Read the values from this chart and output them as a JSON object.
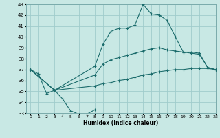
{
  "bg_color": "#c8e8e4",
  "grid_color": "#a0cccc",
  "line_color": "#1a6b6b",
  "xlabel": "Humidex (Indice chaleur)",
  "xlim": [
    -0.5,
    23
  ],
  "ylim": [
    33,
    43
  ],
  "figsize": [
    3.2,
    2.0
  ],
  "dpi": 100,
  "curve_vshape_x": [
    0,
    1,
    2,
    3,
    4,
    5,
    6,
    7,
    8
  ],
  "curve_vshape_y": [
    37.0,
    36.6,
    34.8,
    35.1,
    34.3,
    33.2,
    32.9,
    32.9,
    33.3
  ],
  "curve_main_x": [
    0,
    3,
    8,
    9,
    10,
    11,
    12,
    13,
    14,
    15,
    16,
    17,
    18,
    19,
    20,
    21,
    22,
    23
  ],
  "curve_main_y": [
    37.0,
    35.1,
    37.3,
    39.3,
    40.5,
    40.8,
    40.8,
    41.1,
    43.0,
    42.1,
    42.0,
    41.5,
    40.0,
    38.6,
    38.5,
    38.4,
    37.2,
    37.0
  ],
  "curve_upper_x": [
    0,
    3,
    8,
    9,
    10,
    11,
    12,
    13,
    14,
    15,
    16,
    17,
    18,
    19,
    20,
    21,
    22,
    23
  ],
  "curve_upper_y": [
    37.0,
    35.1,
    36.5,
    37.5,
    37.9,
    38.1,
    38.3,
    38.5,
    38.7,
    38.9,
    39.0,
    38.8,
    38.7,
    38.6,
    38.6,
    38.5,
    37.2,
    37.0
  ],
  "curve_lower_x": [
    0,
    3,
    8,
    9,
    10,
    11,
    12,
    13,
    14,
    15,
    16,
    17,
    18,
    19,
    20,
    21,
    22,
    23
  ],
  "curve_lower_y": [
    37.0,
    35.1,
    35.5,
    35.7,
    35.8,
    36.0,
    36.1,
    36.3,
    36.5,
    36.6,
    36.8,
    36.9,
    37.0,
    37.0,
    37.1,
    37.1,
    37.1,
    37.0
  ]
}
